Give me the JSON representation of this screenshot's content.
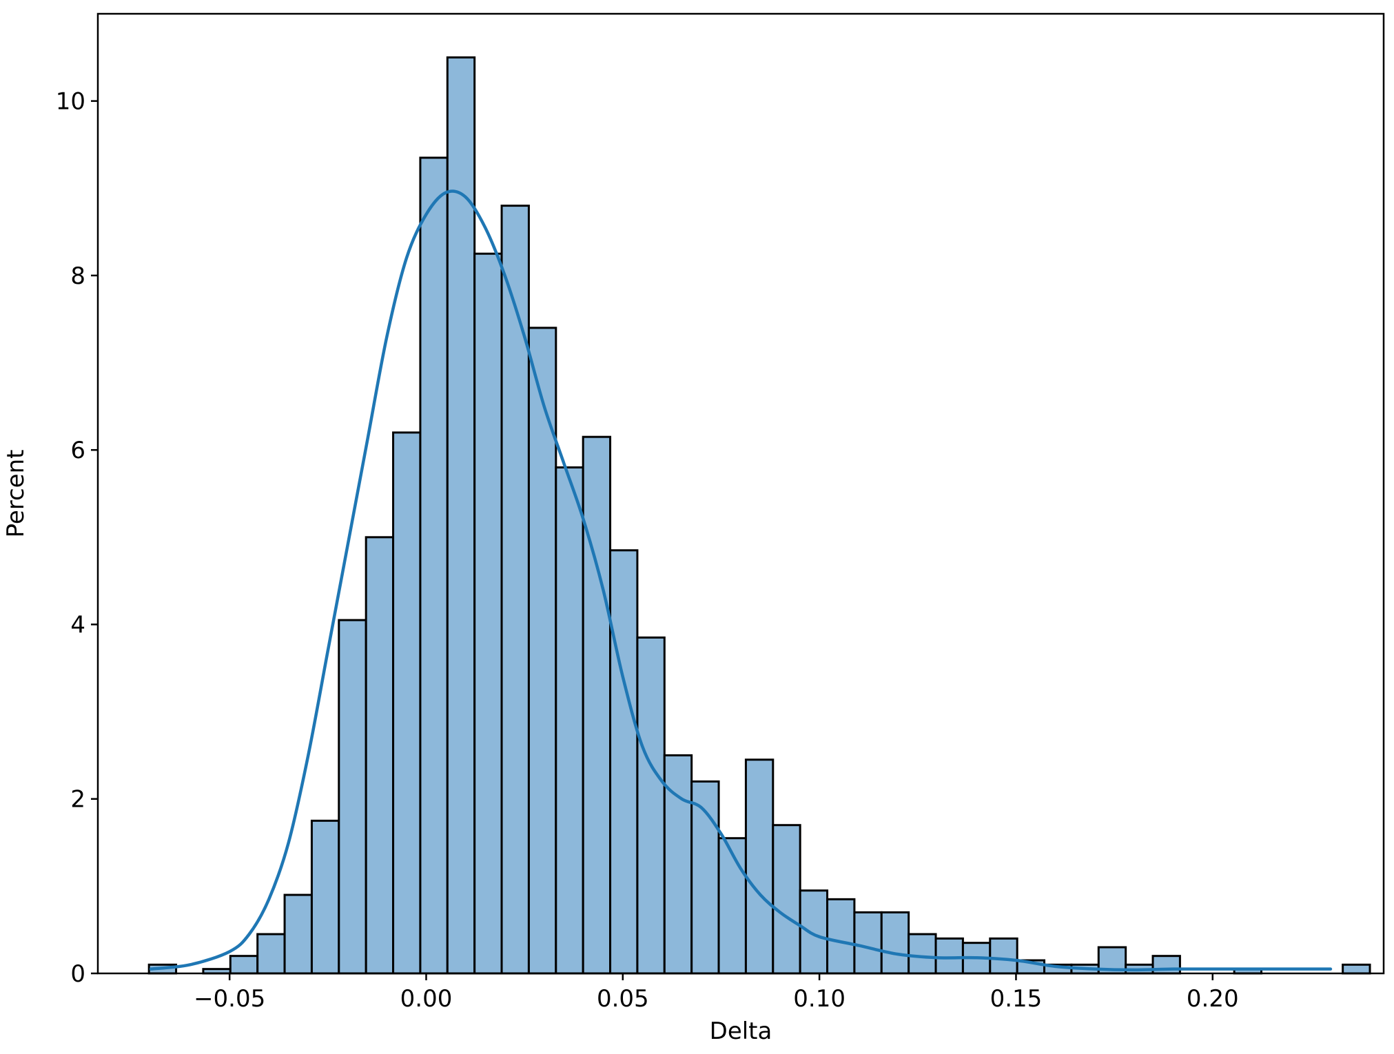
{
  "chart_data": {
    "type": "bar",
    "subtype": "histogram-with-kde",
    "xlabel": "Delta",
    "ylabel": "Percent",
    "xlim": [
      -0.0835,
      0.2435
    ],
    "ylim": [
      0,
      11.0
    ],
    "xticks": [
      -0.05,
      0.0,
      0.05,
      0.1,
      0.15,
      0.2
    ],
    "xtick_labels": [
      "−0.05",
      "0.00",
      "0.05",
      "0.10",
      "0.15",
      "0.20"
    ],
    "yticks": [
      0,
      2,
      4,
      6,
      8,
      10
    ],
    "ytick_labels": [
      "0",
      "2",
      "4",
      "6",
      "8",
      "10"
    ],
    "grid": false,
    "bin_start": -0.0705,
    "bin_width": 0.0069,
    "values": [
      0.1,
      0.0,
      0.05,
      0.2,
      0.45,
      0.9,
      1.75,
      4.05,
      5.0,
      6.2,
      9.35,
      10.5,
      8.25,
      8.8,
      7.4,
      5.8,
      6.15,
      4.85,
      3.85,
      2.5,
      2.2,
      1.55,
      2.45,
      1.7,
      0.95,
      0.85,
      0.7,
      0.7,
      0.45,
      0.4,
      0.35,
      0.4,
      0.15,
      0.1,
      0.1,
      0.3,
      0.1,
      0.2,
      0.0,
      0.0,
      0.05,
      0.0,
      0.0,
      0.0,
      0.1
    ],
    "kde": {
      "x": [
        -0.07,
        -0.06,
        -0.05,
        -0.045,
        -0.04,
        -0.035,
        -0.03,
        -0.025,
        -0.02,
        -0.015,
        -0.01,
        -0.005,
        0.0,
        0.005,
        0.01,
        0.015,
        0.02,
        0.025,
        0.03,
        0.035,
        0.04,
        0.045,
        0.05,
        0.055,
        0.06,
        0.065,
        0.07,
        0.075,
        0.08,
        0.085,
        0.09,
        0.095,
        0.1,
        0.11,
        0.12,
        0.13,
        0.14,
        0.15,
        0.16,
        0.17,
        0.18,
        0.19,
        0.2,
        0.21,
        0.22,
        0.23
      ],
      "y": [
        0.05,
        0.1,
        0.25,
        0.45,
        0.85,
        1.5,
        2.5,
        3.7,
        4.9,
        6.1,
        7.3,
        8.2,
        8.7,
        8.95,
        8.9,
        8.55,
        8.0,
        7.3,
        6.5,
        5.85,
        5.2,
        4.4,
        3.4,
        2.6,
        2.2,
        2.0,
        1.9,
        1.6,
        1.2,
        0.9,
        0.7,
        0.55,
        0.42,
        0.32,
        0.22,
        0.18,
        0.18,
        0.15,
        0.08,
        0.05,
        0.04,
        0.05,
        0.05,
        0.05,
        0.05,
        0.05
      ]
    },
    "colors": {
      "bar_fill": "#8db8da",
      "bar_edge": "#000000",
      "kde_line": "#1f77b4"
    }
  }
}
